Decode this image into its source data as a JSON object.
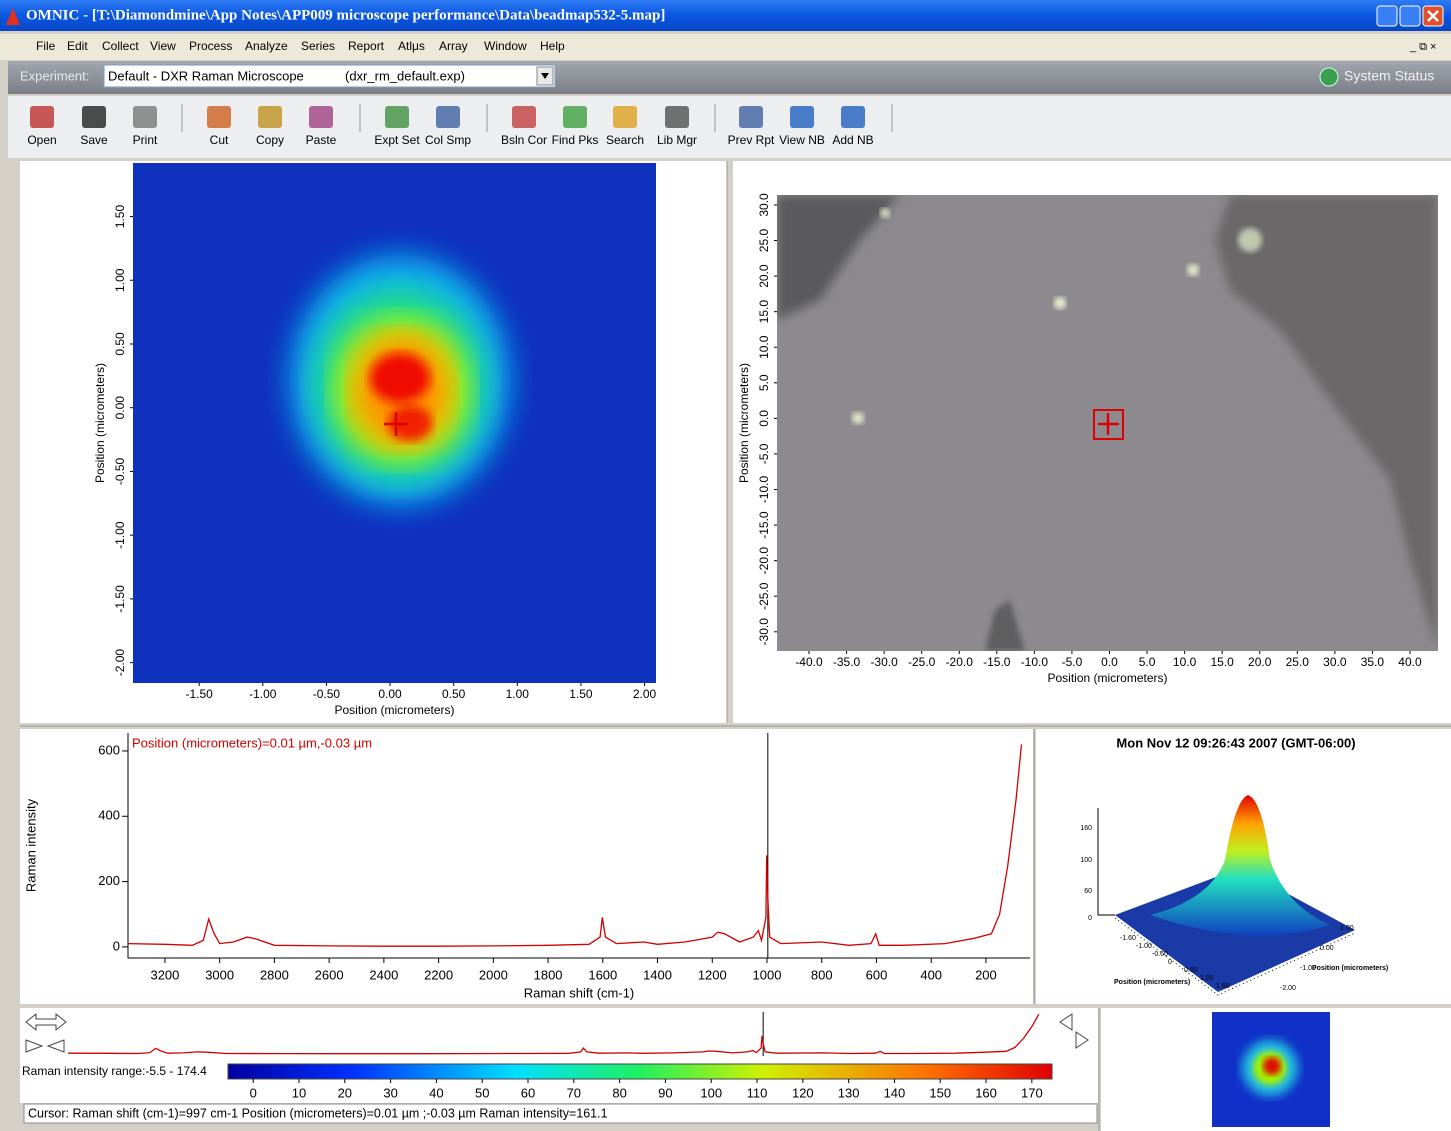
{
  "window": {
    "title": "OMNIC - [T:\\Diamondmine\\App Notes\\APP009 microscope performance\\Data\\beadmap532-5.map]"
  },
  "menu": [
    "File",
    "Edit",
    "Collect",
    "View",
    "Process",
    "Analyze",
    "Series",
    "Report",
    "Atlμs",
    "Array",
    "Window",
    "Help"
  ],
  "experiment": {
    "label": "Experiment:",
    "value": "Default - DXR Raman Microscope",
    "file": "(dxr_rm_default.exp)",
    "status": "System Status"
  },
  "toolbar": [
    "Open",
    "Save",
    "Print",
    "Cut",
    "Copy",
    "Paste",
    "Expt Set",
    "Col Smp",
    "Bsln Cor",
    "Find Pks",
    "Search",
    "Lib Mgr",
    "Prev Rpt",
    "View NB",
    "Add NB"
  ],
  "map": {
    "xlabel": "Position (micrometers)",
    "ylabel": "Position (micrometers)",
    "xlim": [
      -2.02,
      2.09
    ],
    "ylim": [
      -2.16,
      1.92
    ],
    "xticks": [
      {
        "value": -1.5,
        "label": "-1.50"
      },
      {
        "value": -1,
        "label": "-1.00"
      },
      {
        "value": -0.5,
        "label": "-0.50"
      },
      {
        "value": 0,
        "label": "0.00"
      },
      {
        "value": 0.5,
        "label": "0.50"
      },
      {
        "value": 1,
        "label": "1.00"
      },
      {
        "value": 1.5,
        "label": "1.50"
      },
      {
        "value": 2,
        "label": "2.00"
      }
    ],
    "yticks": [
      {
        "value": 1.5,
        "label": "1.50"
      },
      {
        "value": 1,
        "label": "1.00"
      },
      {
        "value": 0.5,
        "label": "0.50"
      },
      {
        "value": 0,
        "label": "0.00"
      },
      {
        "value": -0.5,
        "label": "-0.50"
      },
      {
        "value": -1,
        "label": "-1.00"
      },
      {
        "value": -1.5,
        "label": "-1.50"
      },
      {
        "value": -2,
        "label": "-2.00"
      }
    ]
  },
  "video": {
    "xlabel": "Position (micrometers)",
    "ylabel": "Position (micrometers)",
    "xlim": [
      -44.26,
      43.73
    ],
    "ylim": [
      -32.7,
      31.4
    ],
    "xticks": [
      {
        "value": -40,
        "label": "-40.0"
      },
      {
        "value": -35,
        "label": "-35.0"
      },
      {
        "value": -30,
        "label": "-30.0"
      },
      {
        "value": -25,
        "label": "-25.0"
      },
      {
        "value": -20,
        "label": "-20.0"
      },
      {
        "value": -15,
        "label": "-15.0"
      },
      {
        "value": -10,
        "label": "-10.0"
      },
      {
        "value": -5,
        "label": "-5.0"
      },
      {
        "value": 0,
        "label": "0.0"
      },
      {
        "value": 5,
        "label": "5.0"
      },
      {
        "value": 10,
        "label": "10.0"
      },
      {
        "value": 15,
        "label": "15.0"
      },
      {
        "value": 20,
        "label": "20.0"
      },
      {
        "value": 25,
        "label": "25.0"
      },
      {
        "value": 30,
        "label": "30.0"
      },
      {
        "value": 35,
        "label": "35.0"
      },
      {
        "value": 40,
        "label": "40.0"
      }
    ],
    "yticks": [
      {
        "value": 30,
        "label": "30.0"
      },
      {
        "value": 25,
        "label": "25.0"
      },
      {
        "value": 20,
        "label": "20.0"
      },
      {
        "value": 15,
        "label": "15.0"
      },
      {
        "value": 10,
        "label": "10.0"
      },
      {
        "value": 5,
        "label": "5.0"
      },
      {
        "value": 0,
        "label": "0.0"
      },
      {
        "value": -5,
        "label": "-5.0"
      },
      {
        "value": -10,
        "label": "-10.0"
      },
      {
        "value": -15,
        "label": "-15.0"
      },
      {
        "value": -20,
        "label": "-20.0"
      },
      {
        "value": -25,
        "label": "-25.0"
      },
      {
        "value": -30,
        "label": "-30.0"
      }
    ]
  },
  "spectrum": {
    "type": "line",
    "annotation": "Position (micrometers)=0.01 µm,-0.03 µm",
    "xlabel": "Raman shift (cm-1)",
    "ylabel": "Raman intensity",
    "color": "#d40000",
    "xlim": [
      3335,
      39
    ],
    "ylim": [
      -34,
      655
    ],
    "xticks": [
      3200,
      3000,
      2800,
      2600,
      2400,
      2200,
      2000,
      1800,
      1600,
      1400,
      1200,
      1000,
      800,
      600,
      400,
      200
    ],
    "yticks": [
      0,
      200,
      400,
      600
    ],
    "cursor": 997,
    "x": [
      3335,
      3200,
      3100,
      3060,
      3040,
      3020,
      3000,
      2950,
      2900,
      2870,
      2800,
      2600,
      2400,
      2200,
      2000,
      1800,
      1650,
      1610,
      1602,
      1590,
      1550,
      1450,
      1400,
      1300,
      1200,
      1180,
      1155,
      1100,
      1050,
      1032,
      1020,
      1004,
      1001,
      997,
      990,
      950,
      800,
      700,
      620,
      603,
      590,
      500,
      350,
      250,
      180,
      150,
      120,
      90,
      70
    ],
    "values": [
      10,
      8,
      5,
      20,
      85,
      40,
      10,
      15,
      30,
      25,
      5,
      3,
      2,
      2,
      3,
      5,
      8,
      30,
      90,
      30,
      10,
      15,
      8,
      15,
      30,
      45,
      40,
      15,
      30,
      50,
      20,
      90,
      280,
      150,
      30,
      10,
      15,
      5,
      10,
      40,
      5,
      5,
      10,
      25,
      40,
      100,
      250,
      450,
      620
    ]
  },
  "surface": {
    "title": "Mon Nov 12 09:26:43 2007 (GMT-06:00)",
    "zticks": [
      "160",
      "100",
      "60",
      "0"
    ],
    "xticks": [
      "-1.60",
      "-1.00",
      "-0.60",
      "0",
      "0.60",
      "1.00",
      "1.60"
    ],
    "yticks": [
      "1.00",
      "0.00",
      "-1.00",
      "-2.00"
    ],
    "xlabel": "Position (micrometers)",
    "ylabel": "Position (micrometers)"
  },
  "colorbar": {
    "label": "Raman intensity range:-5.5 - 174.4",
    "clim": [
      -5.5,
      174.4
    ],
    "ticks": [
      0,
      10,
      20,
      30,
      40,
      50,
      60,
      70,
      80,
      90,
      100,
      110,
      120,
      130,
      140,
      150,
      160,
      170
    ]
  },
  "status": "Cursor: Raman shift (cm-1)=997 cm-1  Position (micrometers)=0.01 µm ;-0.03 µm  Raman intensity=161.1"
}
